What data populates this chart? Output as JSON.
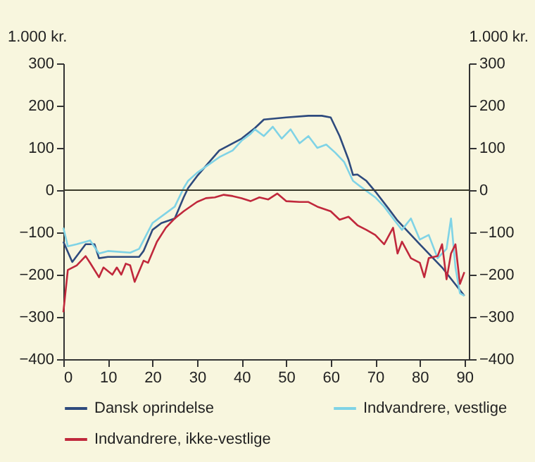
{
  "chart_data": {
    "type": "line",
    "ylabel": "1.000 kr.",
    "y2label": "1.000 kr.",
    "xlim": [
      0,
      91
    ],
    "xticks": [
      0,
      10,
      20,
      30,
      40,
      50,
      60,
      70,
      80,
      90
    ],
    "ylim": [
      -400,
      300
    ],
    "yticks": [
      -400,
      -300,
      -200,
      -100,
      0,
      100,
      200,
      300
    ],
    "y2lim": [
      -400,
      300
    ],
    "y2ticks": [
      -400,
      -300,
      -200,
      -100,
      0,
      100,
      200,
      300
    ],
    "grid": false,
    "legend": "bottom",
    "marker": "none",
    "line_style": "solid",
    "ref_lines": [
      {
        "axis": "y",
        "value": 0,
        "color": "#3a3a2a"
      }
    ],
    "series": [
      {
        "name": "Dansk oprindelse",
        "color": "#2e4a7d",
        "x": [
          0,
          2,
          5,
          7,
          8,
          10,
          17,
          18,
          20,
          22,
          25,
          27,
          28,
          30,
          35,
          40,
          43,
          45,
          50,
          55,
          58,
          60,
          62,
          64,
          65,
          66,
          68,
          70,
          73,
          75,
          80,
          85,
          90
        ],
        "values": [
          -122,
          -170,
          -128,
          -128,
          -161,
          -158,
          -158,
          -144,
          -94,
          -78,
          -67,
          -17,
          5,
          33,
          94,
          122,
          147,
          167,
          172,
          176,
          176,
          172,
          128,
          72,
          36,
          37,
          22,
          -3,
          -44,
          -72,
          -128,
          -183,
          -250
        ]
      },
      {
        "name": "Indvandrere, vestlige",
        "color": "#7fd3e6",
        "x": [
          0,
          1,
          3,
          6,
          8,
          10,
          15,
          17,
          20,
          25,
          27,
          28,
          30,
          35,
          38,
          40,
          42,
          43,
          45,
          47,
          49,
          51,
          53,
          55,
          57,
          59,
          61,
          63,
          65,
          67,
          70,
          72,
          74,
          76,
          78,
          80,
          82,
          84,
          86,
          87,
          88,
          89,
          90
        ],
        "values": [
          -89,
          -133,
          -128,
          -119,
          -150,
          -144,
          -148,
          -139,
          -78,
          -39,
          5,
          22,
          41,
          78,
          94,
          117,
          133,
          144,
          128,
          150,
          122,
          144,
          111,
          128,
          100,
          108,
          89,
          67,
          22,
          6,
          -17,
          -39,
          -67,
          -94,
          -67,
          -117,
          -106,
          -161,
          -139,
          -67,
          -183,
          -244,
          -250
        ]
      },
      {
        "name": "Indvandrere, ikke-vestlige",
        "color": "#c0283c",
        "x": [
          0,
          1,
          3,
          5,
          6,
          8,
          9,
          11,
          12,
          13,
          14,
          15,
          16,
          18,
          19,
          21,
          23,
          25,
          27,
          30,
          32,
          34,
          36,
          38,
          40,
          42,
          44,
          46,
          48,
          50,
          53,
          55,
          57,
          60,
          62,
          64,
          66,
          68,
          70,
          72,
          74,
          75,
          76,
          78,
          80,
          81,
          82,
          84,
          85,
          86,
          87,
          88,
          89,
          90
        ],
        "values": [
          -289,
          -189,
          -178,
          -156,
          -172,
          -206,
          -183,
          -200,
          -183,
          -200,
          -174,
          -178,
          -217,
          -167,
          -172,
          -122,
          -89,
          -67,
          -50,
          -28,
          -19,
          -17,
          -11,
          -14,
          -19,
          -26,
          -17,
          -22,
          -8,
          -26,
          -28,
          -28,
          -39,
          -50,
          -70,
          -63,
          -83,
          -94,
          -106,
          -128,
          -89,
          -150,
          -122,
          -161,
          -172,
          -206,
          -161,
          -156,
          -128,
          -211,
          -150,
          -128,
          -222,
          -194
        ]
      }
    ]
  }
}
